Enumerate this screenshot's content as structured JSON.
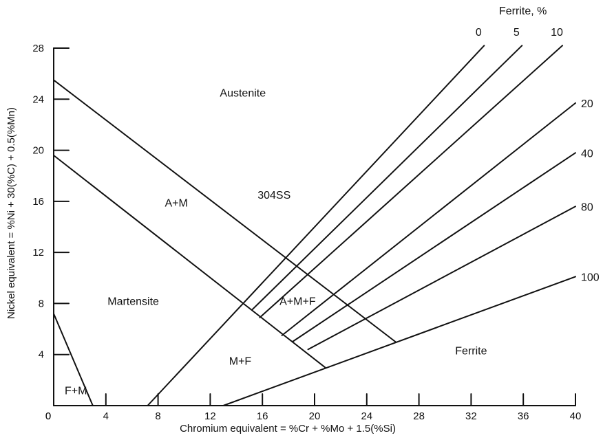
{
  "chart_data": {
    "type": "line",
    "title": "",
    "xlabel": "Chromium equivalent = %Cr + %Mo + 1.5(%Si)",
    "ylabel": "Nickel equivalent = %Ni + 30(%C) + 0.5(%Mn)",
    "xlim": [
      0,
      40
    ],
    "ylim": [
      0,
      28
    ],
    "x_ticks": [
      0,
      4,
      8,
      12,
      16,
      20,
      24,
      28,
      32,
      36,
      40
    ],
    "x_tick_labels": [
      "0",
      "4",
      "8",
      "12",
      "16",
      "20",
      "24",
      "28",
      "32",
      "36",
      "40"
    ],
    "y_ticks": [
      4,
      8,
      12,
      16,
      20,
      24,
      28
    ],
    "y_tick_labels": [
      "4",
      "8",
      "12",
      "16",
      "20",
      "24",
      "28"
    ],
    "y_origin_label": "0",
    "boundaries": [
      {
        "id": "austenite-boundary",
        "points": [
          [
            0,
            25.5
          ],
          [
            26.2,
            5.0
          ]
        ]
      },
      {
        "id": "martensite-boundary",
        "points": [
          [
            0,
            19.6
          ],
          [
            20.8,
            3.0
          ]
        ]
      },
      {
        "id": "fm-boundary",
        "points": [
          [
            0,
            7.2
          ],
          [
            3.0,
            0
          ]
        ]
      }
    ],
    "ferrite_header": "Ferrite, %",
    "series": [
      {
        "name": "0",
        "points": [
          [
            7.2,
            0
          ],
          [
            33.0,
            28.2
          ]
        ]
      },
      {
        "name": "5",
        "points": [
          [
            15.2,
            7.5
          ],
          [
            35.9,
            28.2
          ]
        ]
      },
      {
        "name": "10",
        "points": [
          [
            15.8,
            6.9
          ],
          [
            39.0,
            28.2
          ]
        ]
      },
      {
        "name": "20",
        "points": [
          [
            17.5,
            5.5
          ],
          [
            40.0,
            23.7
          ]
        ]
      },
      {
        "name": "40",
        "points": [
          [
            18.3,
            5.0
          ],
          [
            40.0,
            19.8
          ]
        ]
      },
      {
        "name": "80",
        "points": [
          [
            19.5,
            4.4
          ],
          [
            40.0,
            15.6
          ]
        ]
      },
      {
        "name": "100",
        "points": [
          [
            13.0,
            0
          ],
          [
            40.0,
            10.1
          ]
        ]
      }
    ],
    "region_labels": [
      {
        "text": "Austenite",
        "x": 14.5,
        "y": 24.2
      },
      {
        "text": "304SS",
        "x": 16.9,
        "y": 16.2
      },
      {
        "text": "A+M",
        "x": 9.4,
        "y": 15.6
      },
      {
        "text": "Martensite",
        "x": 6.1,
        "y": 7.9
      },
      {
        "text": "A+M+F",
        "x": 18.7,
        "y": 7.9
      },
      {
        "text": "M+F",
        "x": 14.3,
        "y": 3.2
      },
      {
        "text": "Ferrite",
        "x": 32.0,
        "y": 4.0
      },
      {
        "text": "F+M",
        "x": 1.7,
        "y": 0.9
      }
    ],
    "grid": false,
    "legend": "none"
  }
}
